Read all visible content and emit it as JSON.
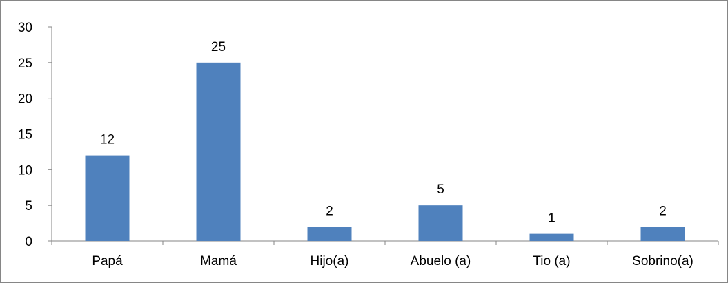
{
  "chart_data": {
    "type": "bar",
    "categories": [
      "Papá",
      "Mamá",
      "Hijo(a)",
      "Abuelo (a)",
      "Tio (a)",
      "Sobrino(a)"
    ],
    "values": [
      12,
      25,
      2,
      5,
      1,
      2
    ],
    "data_labels": [
      "12",
      "25",
      "2",
      "5",
      "1",
      "2"
    ],
    "title": "",
    "xlabel": "",
    "ylabel": "",
    "ylim": [
      0,
      30
    ],
    "yticks": [
      0,
      5,
      10,
      15,
      20,
      25,
      30
    ],
    "ytick_labels": [
      "0",
      "5",
      "10",
      "15",
      "20",
      "25",
      "30"
    ],
    "grid": false,
    "legend": "none",
    "colors": {
      "bar": "#4f81bd",
      "axis": "#868686",
      "border": "#868686",
      "text": "#000000"
    }
  }
}
